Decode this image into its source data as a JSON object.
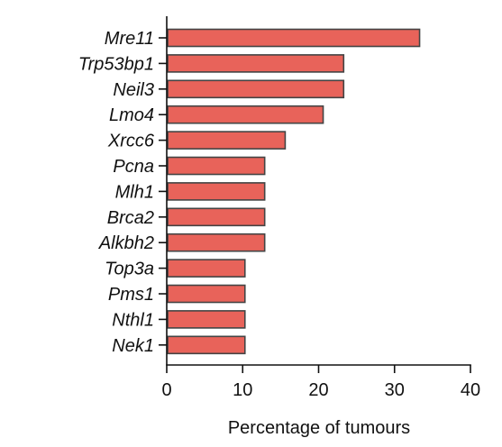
{
  "chart_data": {
    "type": "bar",
    "orientation": "horizontal",
    "categories": [
      "Mre11",
      "Trp53bp1",
      "Neil3",
      "Lmo4",
      "Xrcc6",
      "Pcna",
      "Mlh1",
      "Brca2",
      "Alkbh2",
      "Top3a",
      "Pms1",
      "Nthl1",
      "Nek1"
    ],
    "values": [
      33.3,
      23.3,
      23.3,
      20.6,
      15.6,
      12.9,
      12.9,
      12.9,
      12.9,
      10.3,
      10.3,
      10.3,
      10.3
    ],
    "xlabel": "Percentage of tumours",
    "xlim": [
      0,
      40
    ],
    "xticks": [
      0,
      10,
      20,
      30,
      40
    ],
    "bar_color": "#e8635a",
    "bar_edge_color": "#444444",
    "grid": false
  }
}
